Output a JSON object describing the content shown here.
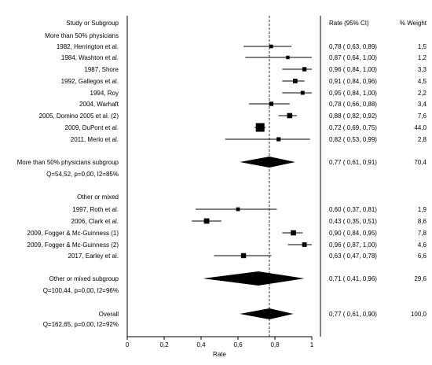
{
  "chart_data": {
    "type": "forest",
    "headers": {
      "study": "Study or Subgroup",
      "rate_ci": "Rate (95% CI)",
      "weight": "% Weight"
    },
    "xlabel": "Rate",
    "xlim": [
      0,
      1
    ],
    "x_ticks": [
      "0",
      "0,2",
      "0,4",
      "0,6",
      "0,8",
      "1"
    ],
    "x_tick_values": [
      0,
      0.2,
      0.4,
      0.6,
      0.8,
      1.0
    ],
    "reference_line": 0.77,
    "colors": {
      "marker": "#000000",
      "axis": "#000000",
      "reference": "#000000"
    },
    "groups": [
      {
        "title": "More than 50% physicians",
        "studies": [
          {
            "label": "1982, Herrington et al.",
            "rate": 0.78,
            "lo": 0.63,
            "hi": 0.89,
            "rate_ci": "0,78  ( 0,63,  0,89)",
            "weight": "1,5"
          },
          {
            "label": "1984, Washton et al.",
            "rate": 0.87,
            "lo": 0.64,
            "hi": 1.0,
            "rate_ci": "0,87  ( 0,64,  1,00)",
            "weight": "1,2"
          },
          {
            "label": "1987, Shore",
            "rate": 0.96,
            "lo": 0.84,
            "hi": 1.0,
            "rate_ci": "0,96  ( 0,84,  1,00)",
            "weight": "3,3"
          },
          {
            "label": "1992, Gallegos et al.",
            "rate": 0.91,
            "lo": 0.84,
            "hi": 0.96,
            "rate_ci": "0,91  ( 0,84,  0,96)",
            "weight": "4,5"
          },
          {
            "label": "1994, Roy",
            "rate": 0.95,
            "lo": 0.84,
            "hi": 1.0,
            "rate_ci": "0,95  ( 0,84,  1,00)",
            "weight": "2,2"
          },
          {
            "label": "2004, Warhaft",
            "rate": 0.78,
            "lo": 0.66,
            "hi": 0.88,
            "rate_ci": "0,78  ( 0,66,  0,88)",
            "weight": "3,4"
          },
          {
            "label": "2005, Domino 2005 et al. (2)",
            "rate": 0.88,
            "lo": 0.82,
            "hi": 0.92,
            "rate_ci": "0,88  ( 0,82,  0,92)",
            "weight": "7,6"
          },
          {
            "label": "2009, DuPont et al.",
            "rate": 0.72,
            "lo": 0.69,
            "hi": 0.75,
            "rate_ci": "0,72  ( 0,69,  0,75)",
            "weight": "44,0"
          },
          {
            "label": "2011, Merlo et al.",
            "rate": 0.82,
            "lo": 0.53,
            "hi": 0.99,
            "rate_ci": "0,82  ( 0,53,  0,99)",
            "weight": "2,8"
          }
        ],
        "subtotal": {
          "label": "More than 50% physicians subgroup",
          "rate": 0.77,
          "lo": 0.61,
          "hi": 0.91,
          "rate_ci": "0,77  ( 0,61,  0,91)",
          "weight": "70,4",
          "stat": "Q=54,52, p=0,00, I2=85%"
        }
      },
      {
        "title": "Other or mixed",
        "studies": [
          {
            "label": "1997, Roth et al.",
            "rate": 0.6,
            "lo": 0.37,
            "hi": 0.81,
            "rate_ci": "0,60  ( 0,37,  0,81)",
            "weight": "1,9"
          },
          {
            "label": "2006, Clark et al.",
            "rate": 0.43,
            "lo": 0.35,
            "hi": 0.51,
            "rate_ci": "0,43  ( 0,35,  0,51)",
            "weight": "8,6"
          },
          {
            "label": "2009, Fogger & Mc-Guinness (1)",
            "rate": 0.9,
            "lo": 0.84,
            "hi": 0.95,
            "rate_ci": "0,90  ( 0,84,  0,95)",
            "weight": "7,8"
          },
          {
            "label": "2009, Fogger & Mc-Guinness (2)",
            "rate": 0.96,
            "lo": 0.87,
            "hi": 1.0,
            "rate_ci": "0,96  ( 0,87,  1,00)",
            "weight": "4,6"
          },
          {
            "label": "2017, Earley et al.",
            "rate": 0.63,
            "lo": 0.47,
            "hi": 0.78,
            "rate_ci": "0,63  ( 0,47,  0,78)",
            "weight": "6,6"
          }
        ],
        "subtotal": {
          "label": "Other or mixed subgroup",
          "rate": 0.71,
          "lo": 0.41,
          "hi": 0.96,
          "rate_ci": "0,71  ( 0,41,  0,96)",
          "weight": "29,6",
          "stat": "Q=100,44, p=0,00, I2=96%"
        }
      }
    ],
    "overall": {
      "label": "Overall",
      "rate": 0.77,
      "lo": 0.61,
      "hi": 0.9,
      "rate_ci": "0,77  ( 0,61,  0,90)",
      "weight": "100,0",
      "stat": "Q=162,65, p=0,00, I2=92%"
    }
  }
}
